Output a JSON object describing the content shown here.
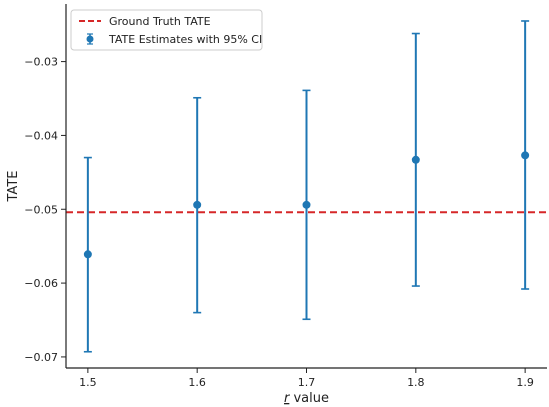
{
  "chart_data": {
    "type": "scatter",
    "xlabel_var": "r",
    "xlabel_rest": " value",
    "ylabel": "TATE",
    "x_ticks": [
      "1.5",
      "1.6",
      "1.7",
      "1.8",
      "1.9"
    ],
    "y_ticks": [
      "−0.03",
      "−0.04",
      "−0.05",
      "−0.06",
      "−0.07"
    ],
    "y_tick_values": [
      -0.03,
      -0.04,
      -0.05,
      -0.06,
      -0.07
    ],
    "xlim": [
      1.48,
      1.92
    ],
    "ylim": [
      -0.0715,
      -0.0222
    ],
    "ground_truth": {
      "label": "Ground Truth TATE",
      "value": -0.0504,
      "color": "#d62728"
    },
    "series": [
      {
        "name": "TATE Estimates with 95% CI",
        "color": "#1f77b4",
        "x": [
          1.5,
          1.6,
          1.7,
          1.8,
          1.9
        ],
        "y": [
          -0.0561,
          -0.0494,
          -0.0494,
          -0.0433,
          -0.0427
        ],
        "ci_low": [
          -0.0693,
          -0.064,
          -0.0649,
          -0.0604,
          -0.0608
        ],
        "ci_high": [
          -0.043,
          -0.0349,
          -0.0339,
          -0.0262,
          -0.0245
        ]
      }
    ],
    "legend_position": "top-left",
    "grid": false
  }
}
